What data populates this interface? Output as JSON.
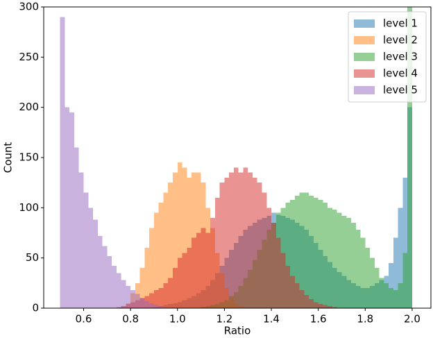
{
  "chart_data": {
    "type": "histogram",
    "xlabel": "Ratio",
    "ylabel": "Count",
    "bins": [
      0.5,
      0.52,
      0.54,
      0.56,
      0.58,
      0.6,
      0.62,
      0.64,
      0.66,
      0.68,
      0.7,
      0.72,
      0.74,
      0.76,
      0.78,
      0.8,
      0.82,
      0.84,
      0.86,
      0.88,
      0.9,
      0.92,
      0.94,
      0.96,
      0.98,
      1,
      1.02,
      1.04,
      1.06,
      1.08,
      1.1,
      1.12,
      1.14,
      1.16,
      1.18,
      1.2,
      1.22,
      1.24,
      1.26,
      1.28,
      1.3,
      1.32,
      1.34,
      1.36,
      1.38,
      1.4,
      1.42,
      1.44,
      1.46,
      1.48,
      1.5,
      1.52,
      1.54,
      1.56,
      1.58,
      1.6,
      1.62,
      1.64,
      1.66,
      1.68,
      1.7,
      1.72,
      1.74,
      1.76,
      1.78,
      1.8,
      1.82,
      1.84,
      1.86,
      1.88,
      1.9,
      1.92,
      1.94,
      1.96,
      1.98,
      2
    ],
    "series": [
      {
        "name": "level 1",
        "color": "#1f77b4",
        "values": [
          0,
          0,
          0,
          0,
          0,
          0,
          0,
          0,
          0,
          0,
          0,
          0,
          0,
          0,
          0,
          0,
          0,
          0,
          0,
          0,
          1,
          2,
          3,
          4,
          5,
          6,
          8,
          10,
          12,
          15,
          18,
          22,
          28,
          35,
          42,
          50,
          58,
          65,
          72,
          78,
          82,
          85,
          88,
          90,
          92,
          95,
          93,
          92,
          90,
          88,
          85,
          82,
          78,
          72,
          65,
          58,
          52,
          46,
          40,
          36,
          32,
          28,
          25,
          22,
          20,
          20,
          22,
          25,
          28,
          32,
          45,
          70,
          100,
          130,
          200
        ]
      },
      {
        "name": "level 2",
        "color": "#ff7f0e",
        "values": [
          0,
          0,
          0,
          0,
          0,
          0,
          0,
          0,
          0,
          0,
          0,
          0,
          0,
          2,
          5,
          15,
          25,
          40,
          60,
          80,
          95,
          105,
          115,
          125,
          135,
          145,
          140,
          130,
          135,
          135,
          125,
          100,
          80,
          55,
          35,
          20,
          10,
          5,
          2,
          0,
          0,
          0,
          0,
          0,
          0,
          0,
          0,
          0,
          0,
          0,
          0,
          0,
          0,
          0,
          0,
          0,
          0,
          0,
          0,
          0,
          0,
          0,
          0,
          0,
          0,
          0,
          0,
          0,
          0,
          0,
          0,
          0,
          0,
          0,
          0
        ]
      },
      {
        "name": "level 3",
        "color": "#2ca02c",
        "values": [
          0,
          0,
          0,
          0,
          0,
          0,
          0,
          0,
          0,
          0,
          0,
          0,
          0,
          0,
          0,
          0,
          0,
          0,
          0,
          0,
          0,
          0,
          0,
          0,
          0,
          0,
          0,
          0,
          0,
          0,
          1,
          2,
          3,
          4,
          6,
          8,
          12,
          16,
          22,
          30,
          38,
          48,
          58,
          68,
          78,
          85,
          95,
          100,
          105,
          108,
          112,
          115,
          115,
          112,
          110,
          108,
          105,
          100,
          98,
          95,
          92,
          90,
          85,
          78,
          70,
          60,
          50,
          40,
          30,
          25,
          20,
          18,
          25,
          55,
          300
        ]
      },
      {
        "name": "level 4",
        "color": "#d62728",
        "values": [
          0,
          0,
          0,
          0,
          0,
          0,
          0,
          0,
          0,
          0,
          0,
          0,
          1,
          2,
          4,
          6,
          8,
          10,
          12,
          15,
          18,
          20,
          25,
          30,
          40,
          50,
          55,
          60,
          70,
          75,
          80,
          75,
          90,
          110,
          125,
          130,
          135,
          140,
          135,
          140,
          135,
          130,
          125,
          115,
          100,
          85,
          70,
          55,
          42,
          32,
          25,
          18,
          13,
          9,
          6,
          4,
          3,
          2,
          1,
          0,
          0,
          0,
          0,
          0,
          0,
          0,
          0,
          0,
          0,
          0,
          0,
          0,
          0,
          0,
          0
        ]
      },
      {
        "name": "level 5",
        "color": "#9467bd",
        "values": [
          290,
          200,
          195,
          160,
          135,
          115,
          100,
          88,
          72,
          62,
          52,
          42,
          35,
          28,
          22,
          18,
          14,
          10,
          7,
          5,
          3,
          2,
          1,
          0,
          0,
          0,
          0,
          0,
          0,
          0,
          0,
          0,
          0,
          0,
          0,
          0,
          0,
          0,
          0,
          0,
          0,
          0,
          0,
          0,
          0,
          0,
          0,
          0,
          0,
          0,
          0,
          0,
          0,
          0,
          0,
          0,
          0,
          0,
          0,
          0,
          0,
          0,
          0,
          0,
          0,
          0,
          0,
          0,
          0,
          0,
          0,
          0,
          0,
          0,
          0
        ]
      }
    ],
    "xlim": [
      0.43,
      2.08
    ],
    "xticks": [
      0.6,
      0.8,
      {
        "value": 1,
        "label": "1.0"
      },
      1.2,
      1.4,
      1.6,
      1.8,
      {
        "value": 2,
        "label": "2.0"
      }
    ],
    "ylim": [
      0,
      300
    ],
    "yticks": [
      0,
      50,
      100,
      150,
      200,
      250,
      300
    ],
    "legend": "upper right"
  }
}
